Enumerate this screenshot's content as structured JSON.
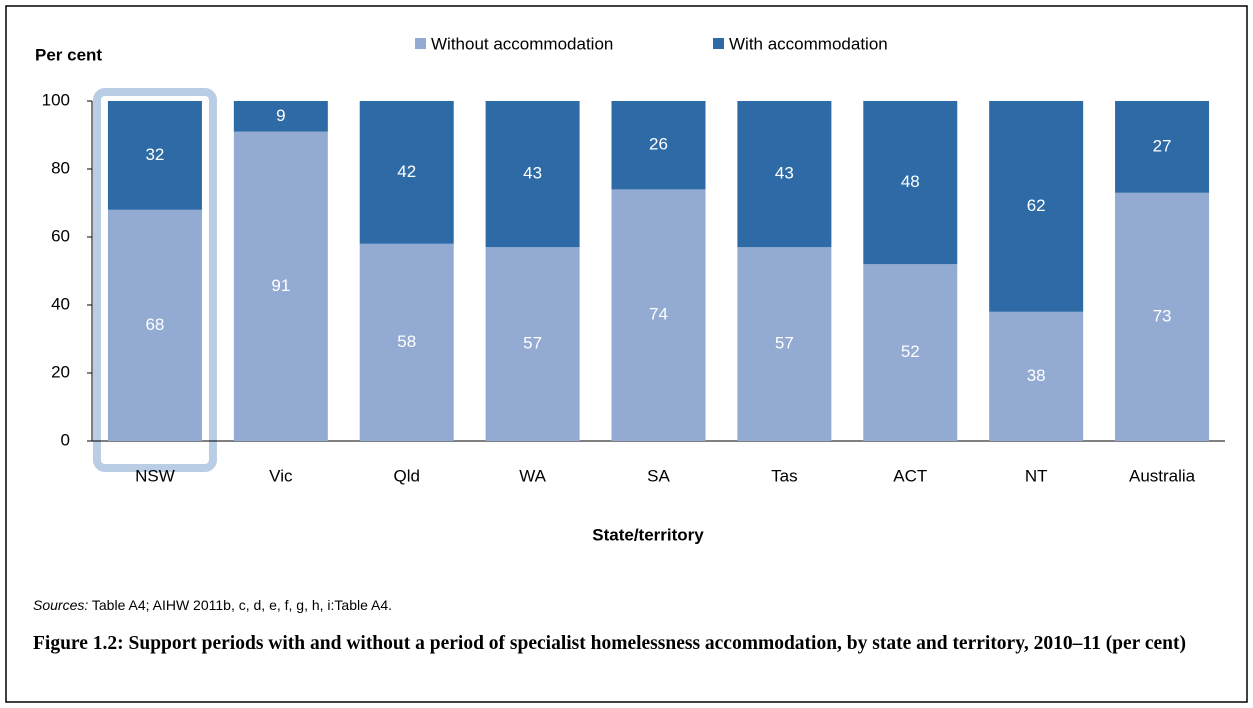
{
  "chart_data": {
    "type": "stacked_bar",
    "y_axis_label": "Per cent",
    "x_axis_label": "State/territory",
    "categories": [
      "NSW",
      "Vic",
      "Qld",
      "WA",
      "SA",
      "Tas",
      "ACT",
      "NT",
      "Australia"
    ],
    "series": [
      {
        "name": "Without accommodation",
        "color": "#93aad2",
        "values": [
          68,
          91,
          58,
          57,
          74,
          57,
          52,
          38,
          73
        ]
      },
      {
        "name": "With accommodation",
        "color": "#2e6ba6",
        "values": [
          32,
          9,
          42,
          43,
          26,
          43,
          48,
          62,
          27
        ]
      }
    ],
    "ylim": [
      0,
      100
    ],
    "yticks": [
      0,
      20,
      40,
      60,
      80,
      100
    ],
    "grid": false,
    "sources_label": "Sources:",
    "sources_text": "Table A4; AIHW 2011b, c, d, e, f, g, h, i:Table A4.",
    "caption": "Figure 1.2: Support periods with and without a period of specialist homelessness accommodation, by state and territory, 2010–11 (per cent)"
  }
}
